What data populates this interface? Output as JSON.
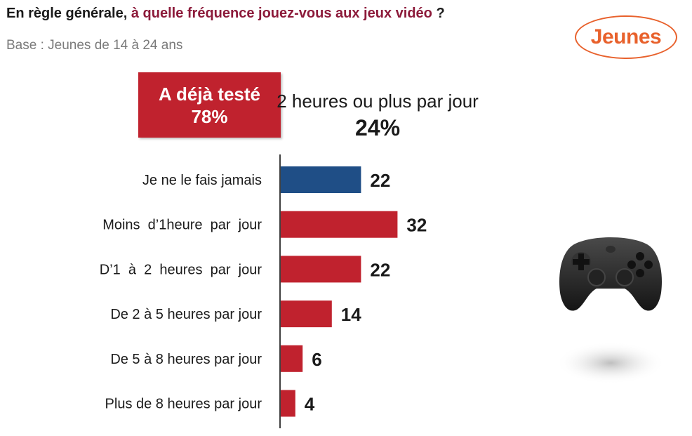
{
  "header": {
    "title_pre": "En règle générale,",
    "title_highlight": "à quelle fréquence jouez-vous aux jeux vidéo",
    "title_post": "?",
    "subtitle": "Base : Jeunes de 14 à 24 ans",
    "badge": "Jeunes"
  },
  "groups": {
    "already_tested_label": "A déjà testé",
    "already_tested_value": "78%",
    "two_hours_label": "2 heures ou plus par jour",
    "two_hours_value": "24%"
  },
  "chart_data": {
    "type": "bar",
    "orientation": "horizontal",
    "categories": [
      "Je ne le fais jamais",
      "Moins  d’1heure  par  jour",
      "D’1  à  2  heures  par  jour",
      "De 2 à 5 heures par jour",
      "De 5 à 8 heures par jour",
      "Plus de 8 heures par jour"
    ],
    "values": [
      22,
      32,
      22,
      14,
      6,
      4
    ],
    "xlim": [
      0,
      100
    ],
    "colors": [
      "#1f4e86",
      "#c0222e",
      "#c0222e",
      "#c0222e",
      "#c0222e",
      "#c0222e"
    ],
    "grid": false,
    "legend": "none"
  },
  "illustration": {
    "icon": "game-controller-icon",
    "body_color": "#2a2a2a"
  }
}
